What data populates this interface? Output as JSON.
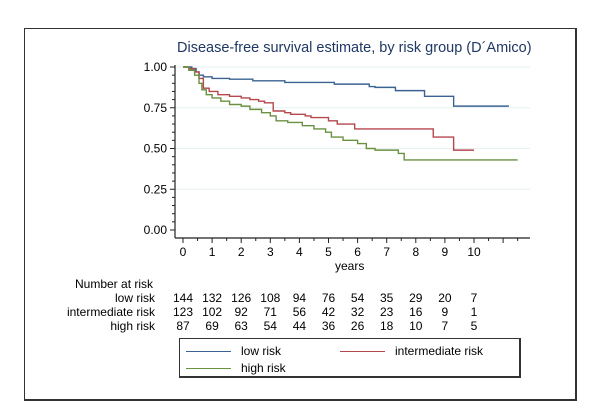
{
  "chart_data": {
    "type": "line",
    "subtype": "kaplan-meier step",
    "title": "Disease-free survival estimate, by risk group (D´Amico)",
    "xlabel": "years",
    "ylabel": "",
    "xlim": [
      0,
      11.7
    ],
    "ylim": [
      0,
      1
    ],
    "x_ticks": [
      "0",
      "1",
      "2",
      "3",
      "4",
      "5",
      "6",
      "7",
      "8",
      "9",
      "10"
    ],
    "y_ticks": [
      "0.00",
      "0.25",
      "0.50",
      "0.75",
      "1.00"
    ],
    "grid": "horizontal",
    "legend_position": "bottom",
    "series": [
      {
        "name": "low risk",
        "color": "#3a6392",
        "steps": [
          [
            0,
            1.0
          ],
          [
            0.3,
            0.99
          ],
          [
            0.45,
            0.97
          ],
          [
            0.55,
            0.95
          ],
          [
            0.7,
            0.94
          ],
          [
            1.0,
            0.93
          ],
          [
            1.6,
            0.925
          ],
          [
            2.4,
            0.915
          ],
          [
            3.5,
            0.905
          ],
          [
            5.2,
            0.895
          ],
          [
            6.4,
            0.88
          ],
          [
            6.6,
            0.875
          ],
          [
            7.3,
            0.855
          ],
          [
            8.3,
            0.82
          ],
          [
            9.3,
            0.76
          ],
          [
            11.2,
            0.76
          ]
        ]
      },
      {
        "name": "intermediate risk",
        "color": "#b5474e",
        "steps": [
          [
            0,
            1.0
          ],
          [
            0.2,
            0.99
          ],
          [
            0.4,
            0.97
          ],
          [
            0.55,
            0.93
          ],
          [
            0.7,
            0.87
          ],
          [
            0.9,
            0.85
          ],
          [
            1.2,
            0.83
          ],
          [
            1.6,
            0.82
          ],
          [
            2.0,
            0.81
          ],
          [
            2.3,
            0.8
          ],
          [
            2.6,
            0.79
          ],
          [
            2.8,
            0.78
          ],
          [
            3.1,
            0.73
          ],
          [
            3.5,
            0.72
          ],
          [
            3.7,
            0.71
          ],
          [
            4.2,
            0.7
          ],
          [
            4.4,
            0.69
          ],
          [
            5.0,
            0.67
          ],
          [
            5.3,
            0.65
          ],
          [
            5.9,
            0.62
          ],
          [
            8.6,
            0.57
          ],
          [
            9.3,
            0.49
          ],
          [
            10.0,
            0.49
          ]
        ]
      },
      {
        "name": "high risk",
        "color": "#6a9141",
        "steps": [
          [
            0,
            1.0
          ],
          [
            0.2,
            0.98
          ],
          [
            0.4,
            0.95
          ],
          [
            0.55,
            0.9
          ],
          [
            0.65,
            0.86
          ],
          [
            0.8,
            0.83
          ],
          [
            1.0,
            0.81
          ],
          [
            1.3,
            0.79
          ],
          [
            1.6,
            0.77
          ],
          [
            2.0,
            0.76
          ],
          [
            2.3,
            0.74
          ],
          [
            2.7,
            0.72
          ],
          [
            3.0,
            0.7
          ],
          [
            3.2,
            0.67
          ],
          [
            3.6,
            0.66
          ],
          [
            4.1,
            0.64
          ],
          [
            4.5,
            0.62
          ],
          [
            4.9,
            0.6
          ],
          [
            5.1,
            0.57
          ],
          [
            5.5,
            0.55
          ],
          [
            6.0,
            0.53
          ],
          [
            6.3,
            0.5
          ],
          [
            6.6,
            0.49
          ],
          [
            7.4,
            0.47
          ],
          [
            7.6,
            0.43
          ],
          [
            11.5,
            0.43
          ]
        ]
      }
    ]
  },
  "risk_table": {
    "heading": "Number at risk",
    "rows": [
      {
        "label": "low risk",
        "values": [
          "144",
          "132",
          "126",
          "108",
          "94",
          "76",
          "54",
          "35",
          "29",
          "20",
          "7"
        ]
      },
      {
        "label": "intermediate risk",
        "values": [
          "123",
          "102",
          "92",
          "71",
          "56",
          "42",
          "32",
          "23",
          "16",
          "9",
          "1"
        ]
      },
      {
        "label": "high risk",
        "values": [
          "87",
          "69",
          "63",
          "54",
          "44",
          "36",
          "26",
          "18",
          "10",
          "7",
          "5"
        ]
      }
    ]
  },
  "legend": {
    "items": [
      {
        "label": "low risk",
        "color": "#3a6392"
      },
      {
        "label": "intermediate risk",
        "color": "#b5474e"
      },
      {
        "label": "high risk",
        "color": "#6a9141"
      }
    ]
  }
}
